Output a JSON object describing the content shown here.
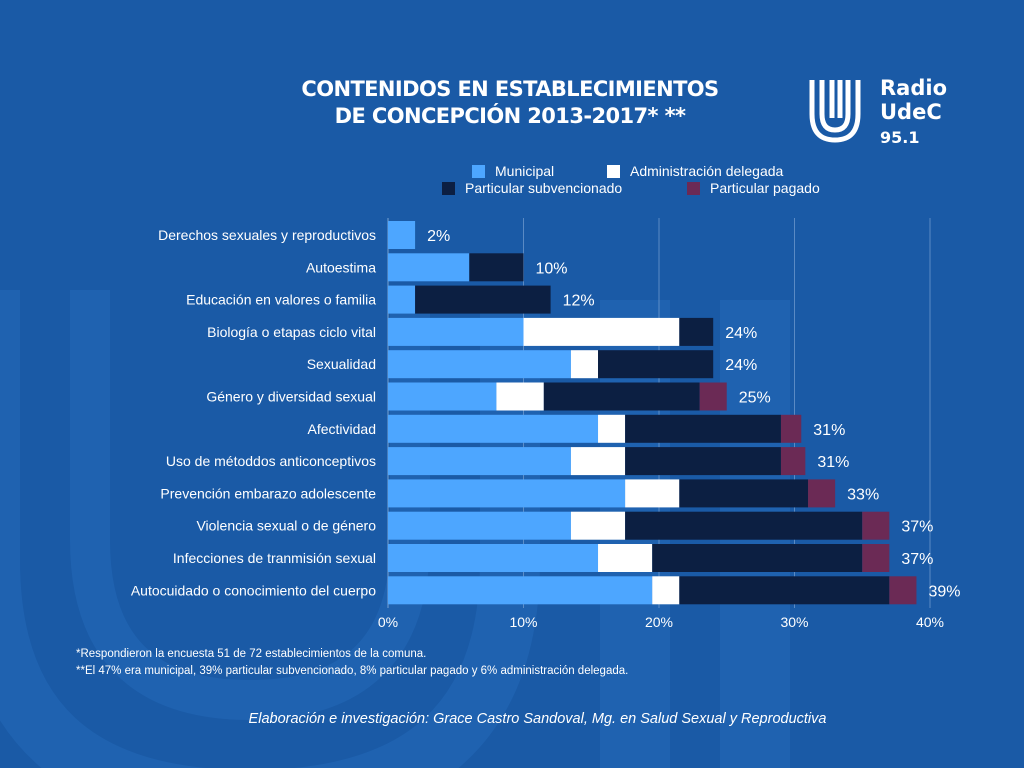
{
  "title_lines": [
    "CONTENIDOS EN ESTABLECIMIENTOS",
    "DE CONCEPCIÓN 2013-2017* **"
  ],
  "logo": {
    "line1": "Radio",
    "line2": "UdeC",
    "line3": "95.1"
  },
  "colors": {
    "background": "#1a5aa6",
    "municipal": "#4da6ff",
    "delegada": "#ffffff",
    "subvencionado": "#0c1f42",
    "pagado": "#6b2a55"
  },
  "chart_data": {
    "type": "bar",
    "orientation": "horizontal",
    "stacked": true,
    "categories": [
      "Derechos sexuales y reproductivos",
      "Autoestima",
      "Educación en valores o familia",
      "Biología o etapas ciclo vital",
      "Sexualidad",
      "Género y diversidad sexual",
      "Afectividad",
      "Uso de métoddos anticonceptivos",
      "Prevención embarazo adolescente",
      "Violencia sexual o de género",
      "Infecciones de tranmisión sexual",
      "Autocuidado o conocimiento del cuerpo"
    ],
    "series": [
      {
        "name": "Municipal",
        "values": [
          2,
          6,
          2,
          10,
          13.5,
          8,
          15.5,
          13.5,
          17.5,
          13.5,
          15.5,
          19.5
        ]
      },
      {
        "name": "Administración delegada",
        "values": [
          0,
          0,
          0,
          11.5,
          2,
          3.5,
          2,
          4,
          4,
          4,
          4,
          2
        ]
      },
      {
        "name": "Particular subvencionado",
        "values": [
          0,
          4,
          10,
          2.5,
          8.5,
          11.5,
          11.5,
          11.5,
          9.5,
          17.5,
          15.5,
          15.5
        ]
      },
      {
        "name": "Particular pagado",
        "values": [
          0,
          0,
          0,
          0,
          0,
          2,
          1.5,
          1.8,
          2,
          2,
          2,
          2
        ]
      }
    ],
    "totals": [
      "2%",
      "10%",
      "12%",
      "24%",
      "24%",
      "25%",
      "31%",
      "31%",
      "33%",
      "37%",
      "37%",
      "39%"
    ],
    "xlim": [
      0,
      40
    ],
    "xticks": [
      "0%",
      "10%",
      "20%",
      "30%",
      "40%"
    ],
    "grid": true,
    "legend_position": "top-right"
  },
  "legend": [
    {
      "label": "Municipal",
      "color": "#4da6ff"
    },
    {
      "label": "Administración delegada",
      "color": "#ffffff"
    },
    {
      "label": "Particular subvencionado",
      "color": "#0c1f42"
    },
    {
      "label": "Particular pagado",
      "color": "#6b2a55"
    }
  ],
  "footnotes": [
    "*Respondieron la encuesta 51 de 72 establecimientos de la comuna.",
    "**El 47% era municipal, 39% particular subvencionado, 8% particular pagado y 6% administración delegada."
  ],
  "credit": "Elaboración e investigación: Grace Castro Sandoval, Mg. en Salud Sexual y Reproductiva"
}
